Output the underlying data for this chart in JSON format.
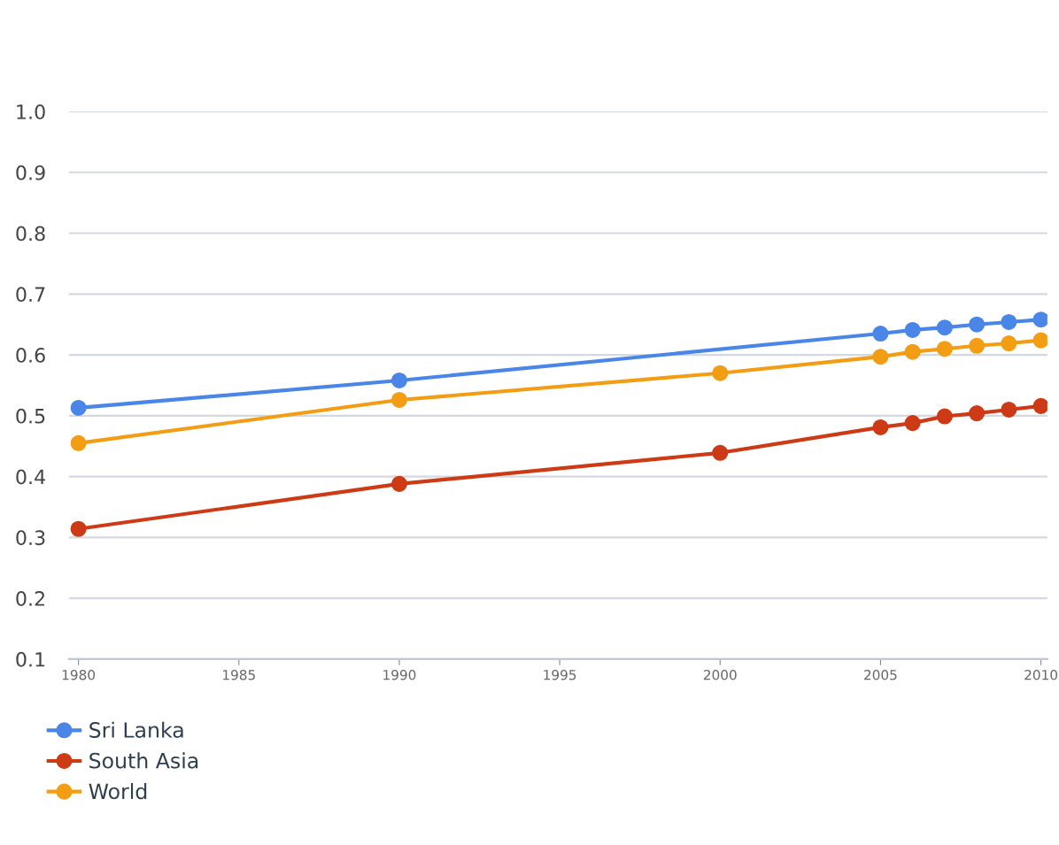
{
  "chart_data": {
    "type": "line",
    "marker": "circle",
    "line_style": "solid",
    "grid": "y",
    "legend": "bottom left",
    "xlim": [
      1979.7,
      2010.2
    ],
    "xticks": [
      1980,
      1985,
      1990,
      1995,
      2000,
      2005,
      2010
    ],
    "ylim": [
      0.1,
      1.0
    ],
    "yticks": [
      {
        "value": 0.1,
        "label": "0.1"
      },
      {
        "value": 0.2,
        "label": "0.2"
      },
      {
        "value": 0.3,
        "label": "0.3"
      },
      {
        "value": 0.4,
        "label": "0.4"
      },
      {
        "value": 0.5,
        "label": "0.5"
      },
      {
        "value": 0.6,
        "label": "0.6"
      },
      {
        "value": 0.7,
        "label": "0.7"
      },
      {
        "value": 0.8,
        "label": "0.8"
      },
      {
        "value": 0.9,
        "label": "0.9"
      },
      {
        "value": 1.0,
        "label": "1.0"
      }
    ],
    "series": [
      {
        "name": "Sri Lanka",
        "color": "#4a86e8",
        "x": [
          1980,
          1990,
          2005,
          2006,
          2007,
          2008,
          2009,
          2010
        ],
        "values": [
          0.513,
          0.558,
          0.635,
          0.641,
          0.645,
          0.65,
          0.654,
          0.658
        ]
      },
      {
        "name": "South Asia",
        "color": "#cc3b15",
        "x": [
          1980,
          1990,
          2000,
          2005,
          2006,
          2007,
          2008,
          2009,
          2010
        ],
        "values": [
          0.314,
          0.388,
          0.439,
          0.481,
          0.488,
          0.499,
          0.504,
          0.51,
          0.516
        ]
      },
      {
        "name": "World",
        "color": "#f29d13",
        "x": [
          1980,
          1990,
          2000,
          2005,
          2006,
          2007,
          2008,
          2009,
          2010
        ],
        "values": [
          0.455,
          0.526,
          0.57,
          0.597,
          0.605,
          0.61,
          0.615,
          0.619,
          0.624
        ]
      }
    ]
  }
}
